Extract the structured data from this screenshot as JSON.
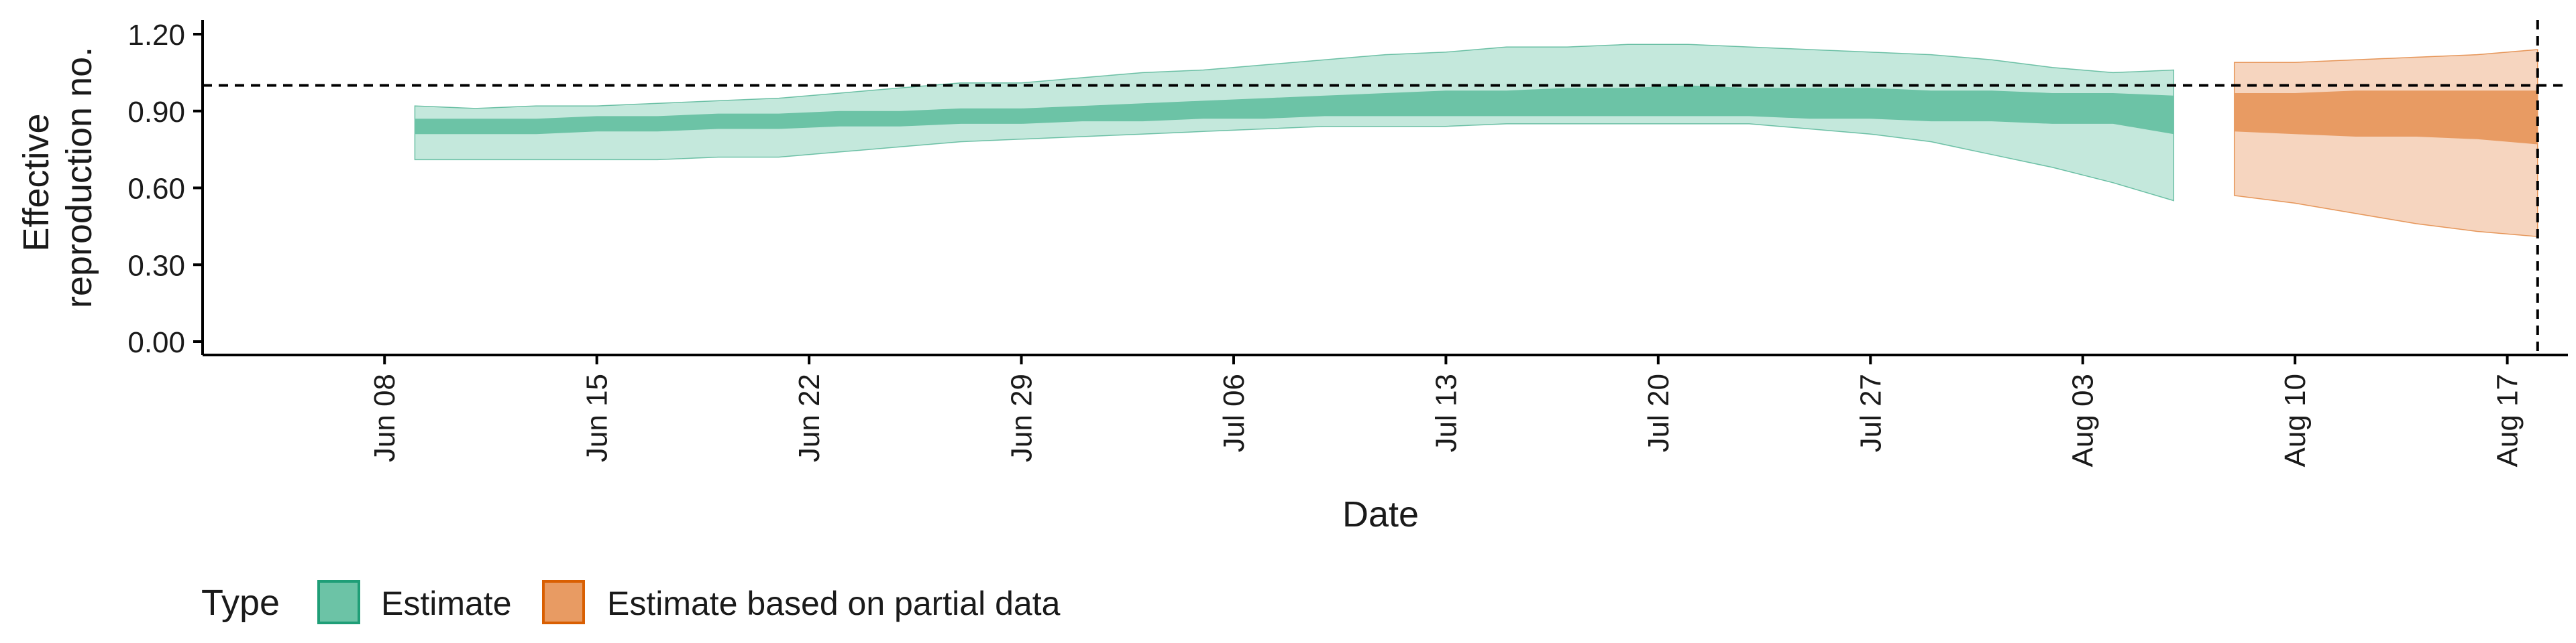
{
  "chart_data": {
    "type": "area",
    "title": "",
    "xlabel": "Date",
    "ylabel": [
      "Effective",
      "reproduction no."
    ],
    "ylim": [
      0,
      1.2
    ],
    "xlim": [
      "2020-06-02",
      "2020-08-19"
    ],
    "y_ticks": [
      "0.00",
      "0.30",
      "0.60",
      "0.90",
      "1.20"
    ],
    "x_ticks": [
      {
        "date": "2020-06-08",
        "label": "Jun 08"
      },
      {
        "date": "2020-06-15",
        "label": "Jun 15"
      },
      {
        "date": "2020-06-22",
        "label": "Jun 22"
      },
      {
        "date": "2020-06-29",
        "label": "Jun 29"
      },
      {
        "date": "2020-07-06",
        "label": "Jul 06"
      },
      {
        "date": "2020-07-13",
        "label": "Jul 13"
      },
      {
        "date": "2020-07-20",
        "label": "Jul 20"
      },
      {
        "date": "2020-07-27",
        "label": "Jul 27"
      },
      {
        "date": "2020-08-03",
        "label": "Aug 03"
      },
      {
        "date": "2020-08-10",
        "label": "Aug 10"
      },
      {
        "date": "2020-08-17",
        "label": "Aug 17"
      }
    ],
    "reference_line": {
      "y": 1.0,
      "style": "dashed"
    },
    "vertical_line": {
      "x": "2020-08-18",
      "style": "dashed"
    },
    "grid": false,
    "legend": {
      "placement": "bottom-left",
      "title": "Type",
      "entries": [
        {
          "name": "Estimate",
          "color": "#66c2a5"
        },
        {
          "name": "Estimate based on partial data",
          "color": "#e7965c"
        }
      ]
    },
    "series": [
      {
        "name": "Estimate",
        "color_light": "#c4e8dc",
        "color_dark": "#6cc3a6",
        "edge": "#1f9e77",
        "x": [
          "2020-06-09",
          "2020-06-11",
          "2020-06-13",
          "2020-06-15",
          "2020-06-17",
          "2020-06-19",
          "2020-06-21",
          "2020-06-23",
          "2020-06-25",
          "2020-06-27",
          "2020-06-29",
          "2020-07-01",
          "2020-07-03",
          "2020-07-05",
          "2020-07-07",
          "2020-07-09",
          "2020-07-11",
          "2020-07-13",
          "2020-07-15",
          "2020-07-17",
          "2020-07-19",
          "2020-07-21",
          "2020-07-23",
          "2020-07-25",
          "2020-07-27",
          "2020-07-29",
          "2020-07-31",
          "2020-08-02",
          "2020-08-04",
          "2020-08-06"
        ],
        "upper90": [
          0.92,
          0.91,
          0.92,
          0.92,
          0.93,
          0.94,
          0.95,
          0.97,
          0.99,
          1.01,
          1.01,
          1.03,
          1.05,
          1.06,
          1.08,
          1.1,
          1.12,
          1.13,
          1.15,
          1.15,
          1.16,
          1.16,
          1.15,
          1.14,
          1.13,
          1.12,
          1.1,
          1.07,
          1.05,
          1.06
        ],
        "upper50": [
          0.87,
          0.87,
          0.87,
          0.88,
          0.88,
          0.89,
          0.89,
          0.9,
          0.9,
          0.91,
          0.91,
          0.92,
          0.93,
          0.94,
          0.95,
          0.96,
          0.97,
          0.98,
          0.98,
          0.99,
          0.99,
          1.0,
          0.99,
          0.99,
          0.99,
          0.98,
          0.98,
          0.97,
          0.97,
          0.96
        ],
        "lower50": [
          0.81,
          0.81,
          0.81,
          0.82,
          0.82,
          0.83,
          0.83,
          0.84,
          0.84,
          0.85,
          0.85,
          0.86,
          0.86,
          0.87,
          0.87,
          0.88,
          0.88,
          0.88,
          0.88,
          0.88,
          0.88,
          0.88,
          0.88,
          0.87,
          0.87,
          0.86,
          0.86,
          0.85,
          0.85,
          0.81
        ],
        "lower90": [
          0.71,
          0.71,
          0.71,
          0.71,
          0.71,
          0.72,
          0.72,
          0.74,
          0.76,
          0.78,
          0.79,
          0.8,
          0.81,
          0.82,
          0.83,
          0.84,
          0.84,
          0.84,
          0.85,
          0.85,
          0.85,
          0.85,
          0.85,
          0.83,
          0.81,
          0.78,
          0.73,
          0.68,
          0.62,
          0.55
        ]
      },
      {
        "name": "Estimate based on partial data",
        "color_light": "#f6d5bf",
        "color_dark": "#e89b63",
        "edge": "#d95f02",
        "x": [
          "2020-08-08",
          "2020-08-10",
          "2020-08-12",
          "2020-08-14",
          "2020-08-16",
          "2020-08-18"
        ],
        "upper90": [
          1.09,
          1.09,
          1.1,
          1.11,
          1.12,
          1.14
        ],
        "upper50": [
          0.97,
          0.97,
          0.98,
          0.98,
          0.98,
          0.98
        ],
        "lower50": [
          0.82,
          0.81,
          0.8,
          0.8,
          0.79,
          0.77
        ],
        "lower90": [
          0.57,
          0.54,
          0.5,
          0.46,
          0.43,
          0.41
        ]
      }
    ]
  }
}
